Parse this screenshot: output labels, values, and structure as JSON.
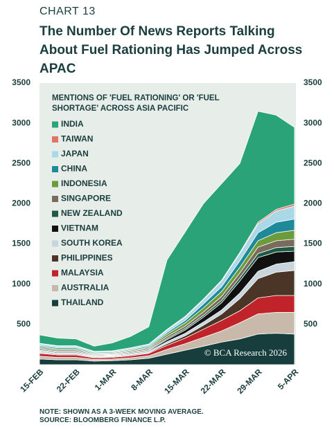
{
  "chart_data": {
    "type": "stacked_area",
    "kicker": "CHART 13",
    "title": "The Number Of News Reports Talking About Fuel Rationing Has Jumped Across APAC",
    "legend_title": "MENTIONS OF 'FUEL RATIONING' OR 'FUEL SHORTAGE' ACROSS ASIA PACIFIC",
    "notes": [
      "NOTE: SHOWN AS A 3-WEEK MOVING AVERAGE.",
      "SOURCE: BLOOMBERG FINANCE L.P."
    ],
    "watermark": "© BCA Research 2026",
    "categories": [
      "15-FEB",
      null,
      "22-FEB",
      null,
      "1-MAR",
      null,
      "8-MAR",
      null,
      "15-MAR",
      null,
      "22-MAR",
      null,
      "29-MAR",
      null,
      "5-APR"
    ],
    "ylim": [
      0,
      3500
    ],
    "yticks": [
      500,
      1000,
      1500,
      2000,
      2500,
      3000,
      3500
    ],
    "y2lim": [
      0,
      3500
    ],
    "y2ticks": [
      500,
      1000,
      1500,
      2000,
      2500,
      3000,
      3500
    ],
    "series": [
      {
        "name": "INDIA",
        "color": "#2aa378",
        "values": [
          105,
          95,
          85,
          63,
          98,
          140,
          215,
          862,
          1050,
          1185,
          1200,
          1105,
          1380,
          1170,
          955
        ]
      },
      {
        "name": "TAIWAN",
        "color": "#e07565",
        "values": [
          5,
          5,
          5,
          4,
          4,
          4,
          5,
          8,
          10,
          10,
          10,
          15,
          20,
          20,
          25
        ]
      },
      {
        "name": "JAPAN",
        "color": "#aad8e6",
        "values": [
          25,
          20,
          20,
          12,
          12,
          15,
          20,
          30,
          40,
          50,
          70,
          90,
          110,
          140,
          160
        ]
      },
      {
        "name": "CHINA",
        "color": "#1e8a99",
        "values": [
          15,
          15,
          15,
          10,
          10,
          12,
          15,
          20,
          30,
          50,
          60,
          80,
          100,
          130,
          140
        ]
      },
      {
        "name": "INDONESIA",
        "color": "#6b9b3a",
        "values": [
          15,
          15,
          15,
          10,
          10,
          12,
          15,
          30,
          40,
          50,
          60,
          70,
          80,
          100,
          110
        ]
      },
      {
        "name": "SINGAPORE",
        "color": "#7b6b5d",
        "values": [
          15,
          15,
          15,
          10,
          10,
          12,
          15,
          25,
          30,
          40,
          50,
          60,
          80,
          85,
          90
        ]
      },
      {
        "name": "NEW ZEALAND",
        "color": "#1f5a45",
        "values": [
          10,
          10,
          10,
          8,
          8,
          10,
          10,
          15,
          20,
          25,
          30,
          40,
          50,
          55,
          60
        ]
      },
      {
        "name": "VIETNAM",
        "color": "#111111",
        "values": [
          10,
          10,
          10,
          8,
          8,
          10,
          10,
          25,
          40,
          60,
          90,
          150,
          170,
          150,
          130
        ]
      },
      {
        "name": "SOUTH KOREA",
        "color": "#c9d5dc",
        "values": [
          20,
          15,
          15,
          12,
          12,
          15,
          15,
          25,
          30,
          40,
          50,
          70,
          90,
          100,
          110
        ]
      },
      {
        "name": "PHILIPPINES",
        "color": "#4a3526",
        "values": [
          10,
          10,
          10,
          8,
          8,
          10,
          10,
          20,
          30,
          50,
          80,
          150,
          240,
          290,
          310
        ]
      },
      {
        "name": "MALAYSIA",
        "color": "#c0232a",
        "values": [
          35,
          30,
          30,
          20,
          20,
          25,
          30,
          50,
          70,
          100,
          130,
          150,
          200,
          210,
          210
        ]
      },
      {
        "name": "AUSTRALIA",
        "color": "#c8b9ab",
        "values": [
          35,
          30,
          30,
          20,
          20,
          25,
          30,
          60,
          80,
          110,
          140,
          200,
          250,
          260,
          270
        ]
      },
      {
        "name": "THAILAND",
        "color": "#173d3d",
        "values": [
          70,
          60,
          60,
          45,
          50,
          60,
          80,
          130,
          180,
          230,
          280,
          320,
          380,
          390,
          380
        ]
      }
    ]
  }
}
